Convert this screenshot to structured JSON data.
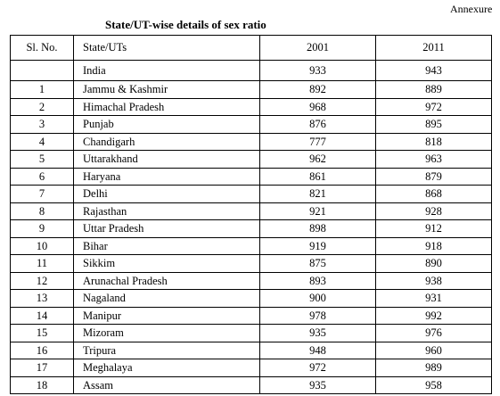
{
  "annexure_label": "Annexure",
  "title": "State/UT-wise details of sex ratio",
  "headers": {
    "sl_no": "Sl. No.",
    "state": "State/UTs",
    "y2001": "2001",
    "y2011": "2011"
  },
  "rows": [
    {
      "sl": "",
      "state": "India",
      "v2001": "933",
      "v2011": "943"
    },
    {
      "sl": "1",
      "state": "Jammu & Kashmir",
      "v2001": "892",
      "v2011": "889"
    },
    {
      "sl": "2",
      "state": "Himachal Pradesh",
      "v2001": "968",
      "v2011": "972"
    },
    {
      "sl": "3",
      "state": "Punjab",
      "v2001": "876",
      "v2011": "895"
    },
    {
      "sl": "4",
      "state": "Chandigarh",
      "v2001": "777",
      "v2011": "818"
    },
    {
      "sl": "5",
      "state": "Uttarakhand",
      "v2001": "962",
      "v2011": "963"
    },
    {
      "sl": "6",
      "state": "Haryana",
      "v2001": "861",
      "v2011": "879"
    },
    {
      "sl": "7",
      "state": "Delhi",
      "v2001": "821",
      "v2011": "868"
    },
    {
      "sl": "8",
      "state": "Rajasthan",
      "v2001": "921",
      "v2011": "928"
    },
    {
      "sl": "9",
      "state": "Uttar Pradesh",
      "v2001": "898",
      "v2011": "912"
    },
    {
      "sl": "10",
      "state": "Bihar",
      "v2001": "919",
      "v2011": "918"
    },
    {
      "sl": "11",
      "state": "Sikkim",
      "v2001": "875",
      "v2011": "890"
    },
    {
      "sl": "12",
      "state": "Arunachal Pradesh",
      "v2001": "893",
      "v2011": "938"
    },
    {
      "sl": "13",
      "state": "Nagaland",
      "v2001": "900",
      "v2011": "931"
    },
    {
      "sl": "14",
      "state": "Manipur",
      "v2001": "978",
      "v2011": "992"
    },
    {
      "sl": "15",
      "state": "Mizoram",
      "v2001": "935",
      "v2011": "976"
    },
    {
      "sl": "16",
      "state": "Tripura",
      "v2001": "948",
      "v2011": "960"
    },
    {
      "sl": "17",
      "state": "Meghalaya",
      "v2001": "972",
      "v2011": "989"
    },
    {
      "sl": "18",
      "state": "Assam",
      "v2001": "935",
      "v2011": "958"
    }
  ]
}
